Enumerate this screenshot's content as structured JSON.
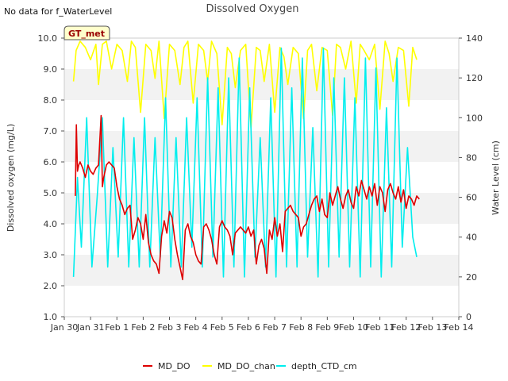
{
  "header": {
    "notice": "No data for f_WaterLevel",
    "title": "Dissolved Oxygen"
  },
  "badge": {
    "label": "GT_met"
  },
  "chart_data": {
    "type": "line",
    "title": "Dissolved Oxygen",
    "ylabel": "Dissolved oxygen (mg/L)",
    "y2label": "Water Level (cm)",
    "ylim": [
      1.0,
      10.0
    ],
    "y2lim": [
      0,
      140
    ],
    "xlim": [
      "Jan 30",
      "Feb 14"
    ],
    "x_ticks": [
      "Jan 30",
      "Jan 31",
      "Feb 1",
      "Feb 2",
      "Feb 3",
      "Feb 4",
      "Feb 5",
      "Feb 6",
      "Feb 7",
      "Feb 8",
      "Feb 9",
      "Feb 10",
      "Feb 11",
      "Feb 12",
      "Feb 13",
      "Feb 14"
    ],
    "y_ticks": [
      "1.0",
      "2.0",
      "3.0",
      "4.0",
      "5.0",
      "6.0",
      "7.0",
      "8.0",
      "9.0",
      "10.0"
    ],
    "y2_ticks": [
      "0",
      "20",
      "40",
      "60",
      "80",
      "100",
      "120",
      "140"
    ],
    "grid": "alternating horizontal bands",
    "legend_position": "bottom-center",
    "colors": {
      "MD_DO": "#dd0000",
      "MD_DO_chan": "#ffff00",
      "depth_CTD_cm": "#00eeee",
      "band": "#f2f2f2",
      "badge_bg": "#ffffcc",
      "badge_text": "#990000"
    },
    "series": [
      {
        "name": "MD_DO",
        "axis": "left",
        "x": [
          0.42,
          0.46,
          0.5,
          0.55,
          0.6,
          0.7,
          0.8,
          0.9,
          1.0,
          1.1,
          1.2,
          1.3,
          1.4,
          1.45,
          1.5,
          1.6,
          1.7,
          1.8,
          1.9,
          2.0,
          2.1,
          2.2,
          2.3,
          2.4,
          2.5,
          2.6,
          2.7,
          2.8,
          2.9,
          3.0,
          3.1,
          3.2,
          3.3,
          3.4,
          3.5,
          3.6,
          3.7,
          3.8,
          3.9,
          4.0,
          4.1,
          4.2,
          4.3,
          4.4,
          4.5,
          4.6,
          4.7,
          4.8,
          4.9,
          5.0,
          5.1,
          5.2,
          5.3,
          5.4,
          5.5,
          5.6,
          5.7,
          5.8,
          5.9,
          6.0,
          6.1,
          6.2,
          6.3,
          6.4,
          6.5,
          6.6,
          6.7,
          6.8,
          6.9,
          7.0,
          7.1,
          7.2,
          7.3,
          7.4,
          7.5,
          7.6,
          7.7,
          7.8,
          7.9,
          8.0,
          8.1,
          8.2,
          8.3,
          8.4,
          8.5,
          8.6,
          8.7,
          8.8,
          8.9,
          9.0,
          9.1,
          9.2,
          9.3,
          9.4,
          9.5,
          9.6,
          9.7,
          9.8,
          9.9,
          10.0,
          10.1,
          10.2,
          10.3,
          10.4,
          10.5,
          10.6,
          10.7,
          10.8,
          10.9,
          11.0,
          11.1,
          11.2,
          11.3,
          11.4,
          11.5,
          11.6,
          11.7,
          11.8,
          11.9,
          12.0,
          12.1,
          12.2,
          12.3,
          12.4,
          12.5,
          12.6,
          12.7,
          12.8,
          12.9,
          13.0,
          13.1,
          13.2,
          13.3,
          13.4,
          13.5
        ],
        "y": [
          4.9,
          7.2,
          5.7,
          5.9,
          6.0,
          5.8,
          5.5,
          5.9,
          5.7,
          5.6,
          5.8,
          5.9,
          7.5,
          5.2,
          5.5,
          5.9,
          6.0,
          5.9,
          5.8,
          5.2,
          4.8,
          4.6,
          4.3,
          4.5,
          4.6,
          3.5,
          3.8,
          4.2,
          4.0,
          3.5,
          4.3,
          3.4,
          3.0,
          2.8,
          2.7,
          2.4,
          3.6,
          4.1,
          3.7,
          4.4,
          4.2,
          3.5,
          3.0,
          2.6,
          2.2,
          3.8,
          4.0,
          3.6,
          3.4,
          3.0,
          2.8,
          2.7,
          3.9,
          4.0,
          3.8,
          3.5,
          3.0,
          2.7,
          3.9,
          4.1,
          3.9,
          3.8,
          3.6,
          3.0,
          3.7,
          3.8,
          3.9,
          3.8,
          3.7,
          3.9,
          3.6,
          3.8,
          2.7,
          3.3,
          3.5,
          3.2,
          2.4,
          3.8,
          3.5,
          4.2,
          3.6,
          4.0,
          3.1,
          4.4,
          4.5,
          4.6,
          4.4,
          4.3,
          4.2,
          3.6,
          3.9,
          4.0,
          4.3,
          4.6,
          4.8,
          4.9,
          4.4,
          4.8,
          4.3,
          4.2,
          5.0,
          4.6,
          4.9,
          5.2,
          4.8,
          4.5,
          4.9,
          5.1,
          4.7,
          4.5,
          5.2,
          4.9,
          5.4,
          5.1,
          4.8,
          5.2,
          4.9,
          5.3,
          4.6,
          5.2,
          5.0,
          4.4,
          5.1,
          5.3,
          5.0,
          4.8,
          5.2,
          4.7,
          5.1,
          4.5,
          4.9,
          4.8,
          4.6,
          4.9,
          4.8
        ]
      },
      {
        "name": "MD_DO_chan",
        "axis": "left",
        "x": [
          0.35,
          0.45,
          0.6,
          0.8,
          1.0,
          1.2,
          1.3,
          1.45,
          1.6,
          1.8,
          2.0,
          2.2,
          2.4,
          2.55,
          2.7,
          2.9,
          3.1,
          3.3,
          3.45,
          3.6,
          3.8,
          4.0,
          4.2,
          4.4,
          4.55,
          4.7,
          4.9,
          5.1,
          5.3,
          5.45,
          5.6,
          5.8,
          6.0,
          6.2,
          6.35,
          6.5,
          6.7,
          6.9,
          7.1,
          7.3,
          7.45,
          7.6,
          7.8,
          8.0,
          8.2,
          8.35,
          8.5,
          8.7,
          8.9,
          9.1,
          9.25,
          9.4,
          9.6,
          9.8,
          10.0,
          10.2,
          10.35,
          10.5,
          10.7,
          10.9,
          11.1,
          11.25,
          11.4,
          11.6,
          11.8,
          12.0,
          12.2,
          12.35,
          12.5,
          12.7,
          12.9,
          13.1,
          13.25,
          13.4
        ],
        "y": [
          8.6,
          9.6,
          9.9,
          9.7,
          9.3,
          9.8,
          8.5,
          9.8,
          9.9,
          9.0,
          9.8,
          9.6,
          8.6,
          9.9,
          9.7,
          7.6,
          9.8,
          9.6,
          8.7,
          9.9,
          7.4,
          9.8,
          9.6,
          8.5,
          9.7,
          9.9,
          7.9,
          9.8,
          9.6,
          8.6,
          9.9,
          9.5,
          7.2,
          9.7,
          9.5,
          8.4,
          9.6,
          9.8,
          7.1,
          9.7,
          9.6,
          8.6,
          9.8,
          7.6,
          9.7,
          9.4,
          8.5,
          9.7,
          9.5,
          7.4,
          9.6,
          9.8,
          8.3,
          9.7,
          9.6,
          7.5,
          9.8,
          9.7,
          9.0,
          9.9,
          7.9,
          9.8,
          9.6,
          9.3,
          9.8,
          7.7,
          9.9,
          9.5,
          8.6,
          9.7,
          9.6,
          7.8,
          9.7,
          9.3
        ]
      },
      {
        "name": "depth_CTD_cm",
        "axis": "right",
        "x": [
          0.35,
          0.5,
          0.65,
          0.85,
          1.05,
          1.25,
          1.45,
          1.65,
          1.85,
          2.05,
          2.25,
          2.45,
          2.65,
          2.85,
          3.05,
          3.25,
          3.45,
          3.65,
          3.85,
          4.05,
          4.25,
          4.45,
          4.65,
          4.85,
          5.05,
          5.25,
          5.45,
          5.65,
          5.85,
          6.05,
          6.25,
          6.45,
          6.65,
          6.85,
          7.05,
          7.25,
          7.45,
          7.65,
          7.85,
          8.05,
          8.25,
          8.45,
          8.65,
          8.85,
          9.05,
          9.25,
          9.45,
          9.65,
          9.85,
          10.05,
          10.25,
          10.45,
          10.65,
          10.85,
          11.05,
          11.25,
          11.45,
          11.65,
          11.85,
          12.05,
          12.25,
          12.45,
          12.65,
          12.85,
          13.05,
          13.25,
          13.4
        ],
        "y": [
          20,
          70,
          35,
          100,
          25,
          60,
          100,
          25,
          85,
          30,
          100,
          25,
          90,
          25,
          100,
          25,
          90,
          30,
          110,
          25,
          90,
          25,
          100,
          35,
          110,
          25,
          120,
          30,
          115,
          20,
          120,
          25,
          130,
          20,
          115,
          30,
          90,
          25,
          110,
          20,
          135,
          25,
          115,
          25,
          130,
          30,
          95,
          20,
          135,
          25,
          120,
          30,
          120,
          25,
          110,
          20,
          130,
          25,
          125,
          20,
          105,
          25,
          130,
          35,
          85,
          40,
          30
        ]
      }
    ]
  }
}
